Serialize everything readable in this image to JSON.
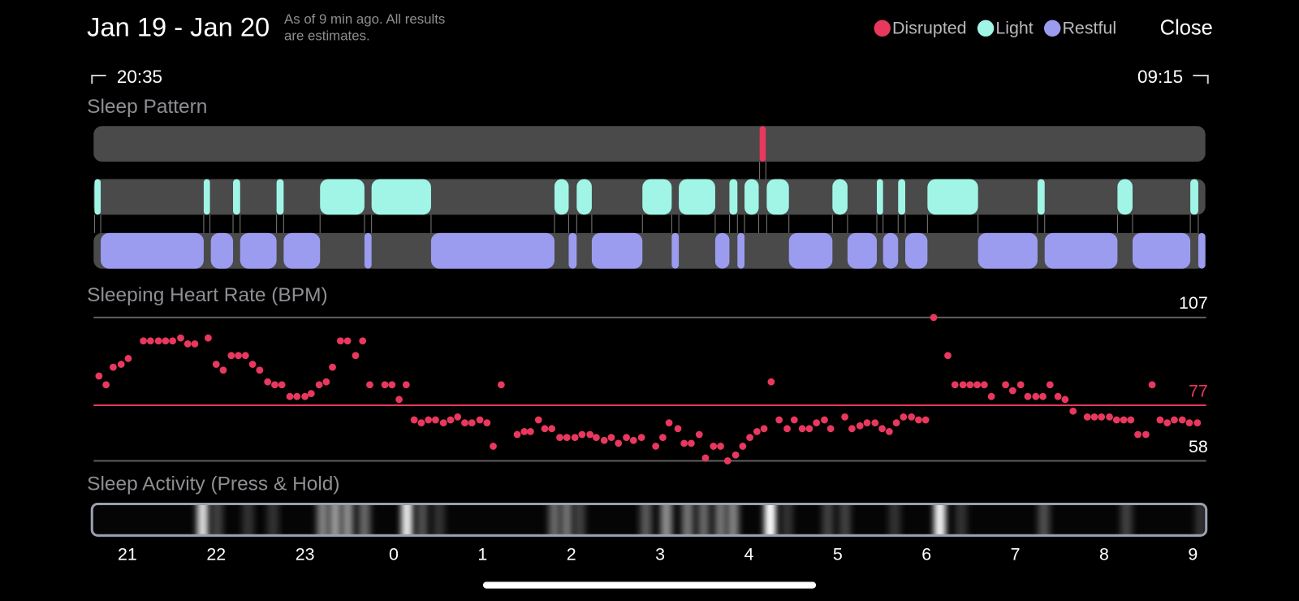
{
  "header": {
    "title": "Jan 19 - Jan 20",
    "note": [
      "As of 9 min ago. All results",
      "are estimates."
    ],
    "close": "Close"
  },
  "chart_data": [
    {
      "type": "timeline",
      "title": "Sleep Pattern",
      "time_range": [
        "20:35",
        "09:15"
      ],
      "xlim": [
        20.62,
        33.14
      ],
      "track_color": "#4a4a4a",
      "series": [
        {
          "name": "Disrupted",
          "color": "#e8385e",
          "intervals": [
            [
              28.12,
              28.19
            ]
          ]
        },
        {
          "name": "Light",
          "color": "#a0f5e6",
          "intervals": [
            [
              20.63,
              20.7
            ],
            [
              21.86,
              21.93
            ],
            [
              22.19,
              22.27
            ],
            [
              22.68,
              22.76
            ],
            [
              23.17,
              23.67
            ],
            [
              23.75,
              24.42
            ],
            [
              25.81,
              25.97
            ],
            [
              26.06,
              26.23
            ],
            [
              26.8,
              27.13
            ],
            [
              27.21,
              27.62
            ],
            [
              27.78,
              27.87
            ],
            [
              27.95,
              28.11
            ],
            [
              28.2,
              28.45
            ],
            [
              28.94,
              29.11
            ],
            [
              29.44,
              29.51
            ],
            [
              29.68,
              29.76
            ],
            [
              30.01,
              30.58
            ],
            [
              31.25,
              31.33
            ],
            [
              32.15,
              32.32
            ],
            [
              32.97,
              33.06
            ]
          ]
        },
        {
          "name": "Restful",
          "color": "#9b9cf0",
          "intervals": [
            [
              20.7,
              21.86
            ],
            [
              21.94,
              22.19
            ],
            [
              22.27,
              22.68
            ],
            [
              22.76,
              23.17
            ],
            [
              23.67,
              23.75
            ],
            [
              24.42,
              25.81
            ],
            [
              25.97,
              26.06
            ],
            [
              26.23,
              26.8
            ],
            [
              27.13,
              27.21
            ],
            [
              27.62,
              27.78
            ],
            [
              27.87,
              27.95
            ],
            [
              28.45,
              28.94
            ],
            [
              29.11,
              29.44
            ],
            [
              29.51,
              29.68
            ],
            [
              29.76,
              30.01
            ],
            [
              30.58,
              31.25
            ],
            [
              31.33,
              32.15
            ],
            [
              32.32,
              32.97
            ],
            [
              33.06,
              33.14
            ]
          ]
        }
      ]
    },
    {
      "type": "scatter",
      "title": "Sleeping Heart Rate (BPM)",
      "color": "#e8385e",
      "xlim": [
        20.62,
        33.14
      ],
      "ylim": [
        58,
        107
      ],
      "yticks": [
        58,
        107
      ],
      "average": {
        "value": 77,
        "color": "#e8385e"
      },
      "x": [
        20.68,
        20.76,
        20.84,
        20.93,
        21.01,
        21.18,
        21.26,
        21.35,
        21.43,
        21.51,
        21.6,
        21.68,
        21.76,
        21.91,
        22.0,
        22.08,
        22.17,
        22.25,
        22.33,
        22.41,
        22.49,
        22.58,
        22.66,
        22.74,
        22.83,
        22.91,
        23.0,
        23.07,
        23.16,
        23.24,
        23.31,
        23.4,
        23.48,
        23.57,
        23.65,
        23.73,
        23.9,
        23.98,
        24.06,
        24.14,
        24.23,
        24.31,
        24.39,
        24.47,
        24.56,
        24.64,
        24.72,
        24.8,
        24.88,
        24.97,
        25.05,
        25.12,
        25.21,
        25.39,
        25.47,
        25.54,
        25.63,
        25.7,
        25.78,
        25.87,
        25.95,
        26.04,
        26.12,
        26.21,
        26.28,
        26.37,
        26.45,
        26.53,
        26.62,
        26.7,
        26.79,
        26.95,
        27.03,
        27.1,
        27.2,
        27.27,
        27.35,
        27.44,
        27.51,
        27.6,
        27.68,
        27.76,
        27.85,
        27.93,
        28.01,
        28.09,
        28.17,
        28.25,
        28.34,
        28.43,
        28.51,
        28.6,
        28.68,
        28.76,
        28.85,
        28.92,
        29.08,
        29.16,
        29.25,
        29.33,
        29.42,
        29.5,
        29.58,
        29.66,
        29.74,
        29.83,
        29.91,
        29.99,
        30.08,
        30.24,
        30.32,
        30.41,
        30.49,
        30.57,
        30.65,
        30.73,
        30.89,
        30.97,
        31.06,
        31.14,
        31.23,
        31.31,
        31.39,
        31.48,
        31.56,
        31.65,
        31.81,
        31.89,
        31.97,
        32.06,
        32.14,
        32.22,
        32.3,
        32.38,
        32.47,
        32.54,
        32.63,
        32.71,
        32.79,
        32.88,
        32.96,
        33.05
      ],
      "values": [
        87,
        84,
        90,
        91,
        93,
        99,
        99,
        99,
        99,
        99,
        100,
        98,
        98,
        100,
        91,
        89,
        94,
        94,
        94,
        91,
        89,
        85,
        84,
        84,
        80,
        80,
        80,
        81,
        84,
        85,
        90,
        99,
        99,
        94,
        99,
        84,
        84,
        84,
        79,
        84,
        72,
        71,
        72,
        72,
        71,
        72,
        73,
        71,
        71,
        72,
        71,
        63,
        84,
        67,
        68,
        68,
        72,
        69,
        69,
        66,
        66,
        66,
        67,
        67,
        66,
        65,
        66,
        64,
        66,
        65,
        66,
        63,
        66,
        71,
        69,
        64,
        64,
        67,
        59,
        63,
        63,
        58,
        60,
        63,
        66,
        68,
        69,
        85,
        72,
        69,
        72,
        69,
        69,
        71,
        72,
        69,
        73,
        69,
        70,
        71,
        71,
        69,
        68,
        71,
        73,
        73,
        72,
        72,
        107,
        94,
        84,
        84,
        84,
        84,
        84,
        80,
        84,
        82,
        84,
        80,
        80,
        80,
        84,
        80,
        79,
        75,
        73,
        73,
        73,
        73,
        72,
        72,
        72,
        67,
        67,
        84,
        72,
        71,
        72,
        72,
        71,
        71
      ]
    },
    {
      "type": "activity",
      "title": "Sleep Activity (Press & Hold)",
      "xlim": [
        20.62,
        33.14
      ],
      "xticks": [
        21,
        22,
        23,
        {
          "value": 24,
          "label": "0"
        },
        {
          "value": 25,
          "label": "1"
        },
        {
          "value": 26,
          "label": "2"
        },
        {
          "value": 27,
          "label": "3"
        },
        {
          "value": 28,
          "label": "4"
        },
        {
          "value": 29,
          "label": "5"
        },
        {
          "value": 30,
          "label": "6"
        },
        {
          "value": 31,
          "label": "7"
        },
        {
          "value": 32,
          "label": "8"
        },
        {
          "value": 33,
          "label": "9"
        }
      ],
      "x": [
        21.85,
        22.01,
        22.36,
        22.64,
        23.2,
        23.34,
        23.48,
        23.67,
        24.15,
        24.32,
        24.51,
        25.81,
        25.95,
        26.09,
        26.84,
        27.07,
        27.31,
        27.49,
        27.68,
        27.82,
        28.24,
        28.43,
        28.89,
        29.08,
        29.64,
        30.15,
        30.39,
        31.32,
        32.25,
        33.09
      ],
      "values": [
        85,
        25,
        20,
        20,
        50,
        60,
        55,
        40,
        90,
        30,
        20,
        40,
        45,
        25,
        35,
        55,
        45,
        40,
        45,
        50,
        100,
        20,
        25,
        25,
        20,
        95,
        20,
        30,
        25,
        20
      ]
    }
  ]
}
